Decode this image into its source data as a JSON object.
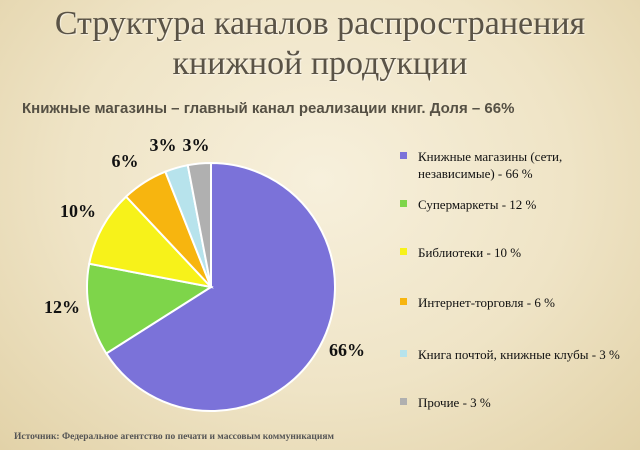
{
  "title": "Структура каналов распространения книжной продукции",
  "subtitle": "Книжные магазины – главный канал реализации книг. Доля – 66%",
  "source": "Источник: Федеральное агентство по печати и массовым коммуникациям",
  "chart_data": {
    "type": "pie",
    "title": "Структура каналов распространения книжной продукции",
    "legend_position": "right",
    "slices": [
      {
        "label": "Книжные магазины (сети, независимые) - 66 %",
        "value": 66,
        "data_label": "66%",
        "color": "#7b72d9"
      },
      {
        "label": "Супермаркеты - 12 %",
        "value": 12,
        "data_label": "12%",
        "color": "#7ed54a"
      },
      {
        "label": "Библиотеки - 10 %",
        "value": 10,
        "data_label": "10%",
        "color": "#f7f21a"
      },
      {
        "label": "Интернет-торговля - 6 %",
        "value": 6,
        "data_label": "6%",
        "color": "#f7b50f"
      },
      {
        "label": "Книга почтой, книжные клубы - 3 %",
        "value": 3,
        "data_label": "3%",
        "color": "#b7e3ec"
      },
      {
        "label": "Прочие - 3 %",
        "value": 3,
        "data_label": "3%",
        "color": "#b0b0b0"
      }
    ]
  }
}
